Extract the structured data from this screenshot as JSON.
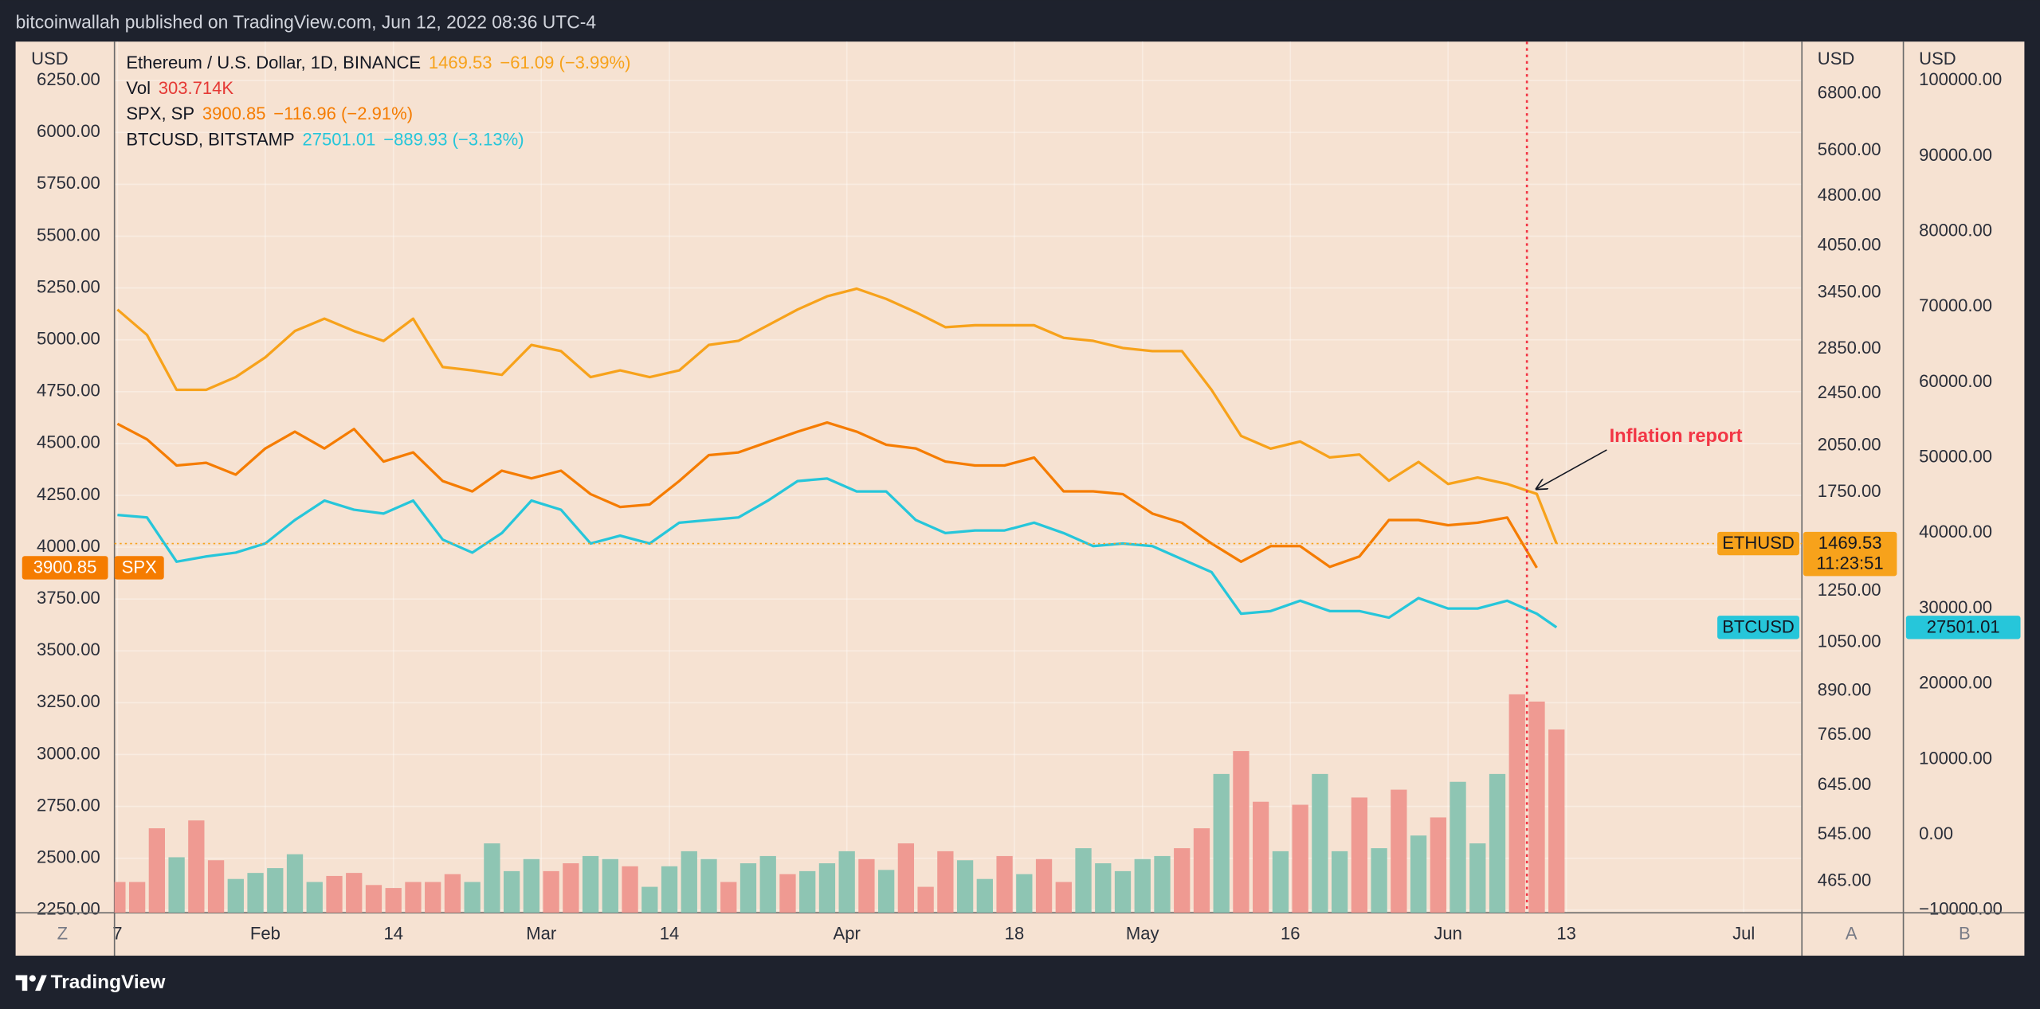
{
  "chart_data": {
    "type": "line",
    "header": "bitcoinwallah published on TradingView.com, Jun 12, 2022 08:36 UTC-4",
    "brand": "TradingView",
    "axis_titles": [
      "USD",
      "USD",
      "USD"
    ],
    "buttons": [
      "Z",
      "A",
      "B"
    ],
    "grid": true,
    "xlim": [
      16.7,
      187.9
    ],
    "xticks": [
      {
        "value": 17,
        "label": "7"
      },
      {
        "value": 32,
        "label": "Feb"
      },
      {
        "value": 45,
        "label": "14"
      },
      {
        "value": 60,
        "label": "Mar"
      },
      {
        "value": 73,
        "label": "14"
      },
      {
        "value": 91,
        "label": "Apr"
      },
      {
        "value": 108,
        "label": "18"
      },
      {
        "value": 121,
        "label": "May"
      },
      {
        "value": 136,
        "label": "16"
      },
      {
        "value": 152,
        "label": "Jun"
      },
      {
        "value": 164,
        "label": "13"
      },
      {
        "value": 182,
        "label": "Jul"
      }
    ],
    "ylim": [
      2237,
      6438
    ],
    "yticks": [
      {
        "value": 2250,
        "label": "2250.00"
      },
      {
        "value": 2500,
        "label": "2500.00"
      },
      {
        "value": 2750,
        "label": "2750.00"
      },
      {
        "value": 3000,
        "label": "3000.00"
      },
      {
        "value": 3250,
        "label": "3250.00"
      },
      {
        "value": 3500,
        "label": "3500.00"
      },
      {
        "value": 3750,
        "label": "3750.00"
      },
      {
        "value": 4000,
        "label": "4000.00"
      },
      {
        "value": 4250,
        "label": "4250.00"
      },
      {
        "value": 4500,
        "label": "4500.00"
      },
      {
        "value": 4750,
        "label": "4750.00"
      },
      {
        "value": 5000,
        "label": "5000.00"
      },
      {
        "value": 5250,
        "label": "5250.00"
      },
      {
        "value": 5500,
        "label": "5500.00"
      },
      {
        "value": 5750,
        "label": "5750.00"
      },
      {
        "value": 6000,
        "label": "6000.00"
      },
      {
        "value": 6250,
        "label": "6250.00"
      }
    ],
    "y2lim": [
      418,
      8117
    ],
    "y2log": true,
    "y2ticks": [
      {
        "value": 465,
        "label": "465.00"
      },
      {
        "value": 545,
        "label": "545.00"
      },
      {
        "value": 645,
        "label": "645.00"
      },
      {
        "value": 765,
        "label": "765.00"
      },
      {
        "value": 890,
        "label": "890.00"
      },
      {
        "value": 1050,
        "label": "1050.00"
      },
      {
        "value": 1250,
        "label": "1250.00"
      },
      {
        "value": 1750,
        "label": "1750.00"
      },
      {
        "value": 2050,
        "label": "2050.00"
      },
      {
        "value": 2450,
        "label": "2450.00"
      },
      {
        "value": 2850,
        "label": "2850.00"
      },
      {
        "value": 3450,
        "label": "3450.00"
      },
      {
        "value": 4050,
        "label": "4050.00"
      },
      {
        "value": 4800,
        "label": "4800.00"
      },
      {
        "value": 5600,
        "label": "5600.00"
      },
      {
        "value": 6800,
        "label": "6800.00"
      }
    ],
    "y3lim": [
      -10345,
      105172
    ],
    "y3ticks": [
      {
        "value": -10000,
        "label": "−10000.00"
      },
      {
        "value": 0,
        "label": "0.00"
      },
      {
        "value": 10000,
        "label": "10000.00"
      },
      {
        "value": 20000,
        "label": "20000.00"
      },
      {
        "value": 30000,
        "label": "30000.00"
      },
      {
        "value": 40000,
        "label": "40000.00"
      },
      {
        "value": 50000,
        "label": "50000.00"
      },
      {
        "value": 60000,
        "label": "60000.00"
      },
      {
        "value": 70000,
        "label": "70000.00"
      },
      {
        "value": 80000,
        "label": "80000.00"
      },
      {
        "value": 90000,
        "label": "90000.00"
      },
      {
        "value": 100000,
        "label": "100000.00"
      }
    ],
    "x": [
      17,
      20,
      23,
      26,
      29,
      32,
      35,
      38,
      41,
      44,
      47,
      50,
      53,
      56,
      59,
      62,
      65,
      68,
      71,
      74,
      77,
      80,
      83,
      86,
      89,
      92,
      95,
      98,
      101,
      104,
      107,
      110,
      113,
      116,
      119,
      122,
      125,
      128,
      131,
      134,
      137,
      140,
      143,
      146,
      149,
      152,
      155,
      158,
      161,
      163
    ],
    "series": [
      {
        "name": "Ethereum / U.S. Dollar, 1D, BINANCE",
        "tag": "ETHUSD",
        "color": "#f7a21b",
        "label_color": "#131722",
        "axis": "y2",
        "change": "−61.09 (−3.99%)",
        "countdown": "11:23:51",
        "price_line": true,
        "values": [
          3260,
          2990,
          2480,
          2480,
          2590,
          2770,
          3030,
          3160,
          3030,
          2930,
          3160,
          2680,
          2650,
          2610,
          2890,
          2830,
          2590,
          2650,
          2590,
          2650,
          2890,
          2930,
          3090,
          3260,
          3410,
          3500,
          3380,
          3230,
          3070,
          3090,
          3090,
          3090,
          2960,
          2930,
          2860,
          2830,
          2830,
          2480,
          2120,
          2030,
          2080,
          1970,
          1990,
          1820,
          1940,
          1800,
          1840,
          1800,
          1740,
          1469.53
        ]
      },
      {
        "name": "SPX, SP",
        "tag": "SPX",
        "color": "#f57c00",
        "label_color": "#ffffff",
        "axis": "y",
        "change": "−116.96 (−2.91%)",
        "values": [
          4595,
          4520,
          4394,
          4407,
          4350,
          4476,
          4557,
          4476,
          4570,
          4413,
          4457,
          4319,
          4269,
          4369,
          4332,
          4369,
          4256,
          4194,
          4206,
          4319,
          4444,
          4457,
          4507,
          4557,
          4601,
          4557,
          4494,
          4476,
          4413,
          4394,
          4394,
          4432,
          4269,
          4269,
          4256,
          4162,
          4118,
          4018,
          3930,
          4005,
          4005,
          3905,
          3955,
          4131,
          4131,
          4106,
          4118,
          4143,
          3900.85,
          null
        ]
      },
      {
        "name": "BTCUSD, BITSTAMP",
        "tag": "BTCUSD",
        "color": "#26c6da",
        "label_color": "#131722",
        "axis": "y3",
        "change": "−889.93 (−3.13%)",
        "values": [
          42410,
          42070,
          36210,
          36900,
          37410,
          38620,
          41730,
          44310,
          43100,
          42590,
          44310,
          39140,
          37410,
          40000,
          44310,
          43100,
          38620,
          39660,
          38620,
          41380,
          41730,
          42070,
          44310,
          46900,
          47240,
          45520,
          45520,
          41730,
          40000,
          40350,
          40350,
          41380,
          40000,
          38280,
          38620,
          38280,
          36550,
          34830,
          29310,
          29660,
          31030,
          29660,
          29660,
          28790,
          31380,
          30000,
          30000,
          31030,
          29310,
          27501.01
        ]
      }
    ],
    "volume": {
      "type": "bar",
      "name": "Vol",
      "legend_label": "303.714K",
      "legend_color": "#e53935",
      "x": [
        17,
        19,
        21,
        23,
        25,
        27,
        29,
        31,
        33,
        35,
        37,
        39,
        41,
        43,
        45,
        47,
        49,
        51,
        53,
        55,
        57,
        59,
        61,
        63,
        65,
        67,
        69,
        71,
        73,
        75,
        77,
        79,
        81,
        83,
        85,
        87,
        89,
        91,
        93,
        95,
        97,
        99,
        101,
        103,
        105,
        107,
        109,
        111,
        113,
        115,
        117,
        119,
        121,
        123,
        125,
        127,
        129,
        131,
        133,
        135,
        137,
        139,
        141,
        143,
        145,
        147,
        149,
        151,
        153,
        155,
        157,
        159,
        161,
        163
      ],
      "values": [
        51000,
        51000,
        140000,
        92000,
        153000,
        87000,
        56000,
        66000,
        74000,
        97000,
        51000,
        61000,
        66000,
        46000,
        41000,
        51000,
        51000,
        64000,
        51000,
        115000,
        69000,
        89000,
        69000,
        82000,
        94000,
        89000,
        77000,
        43000,
        77000,
        102000,
        89000,
        51000,
        82000,
        94000,
        64000,
        69000,
        82000,
        102000,
        89000,
        71000,
        115000,
        43000,
        102000,
        87000,
        56000,
        94000,
        64000,
        89000,
        51000,
        107000,
        82000,
        69000,
        89000,
        94000,
        107000,
        140000,
        230000,
        268000,
        184000,
        102000,
        179000,
        230000,
        102000,
        191000,
        107000,
        204000,
        128000,
        158000,
        217000,
        115000,
        230000,
        362000,
        350000,
        303714
      ],
      "colors": [
        "#ef9a92",
        "#ef9a92",
        "#ef9a92",
        "#8ec5b3",
        "#ef9a92",
        "#ef9a92",
        "#8ec5b3",
        "#8ec5b3",
        "#8ec5b3",
        "#8ec5b3",
        "#8ec5b3",
        "#ef9a92",
        "#ef9a92",
        "#ef9a92",
        "#ef9a92",
        "#ef9a92",
        "#ef9a92",
        "#ef9a92",
        "#8ec5b3",
        "#8ec5b3",
        "#8ec5b3",
        "#8ec5b3",
        "#ef9a92",
        "#ef9a92",
        "#8ec5b3",
        "#8ec5b3",
        "#ef9a92",
        "#8ec5b3",
        "#8ec5b3",
        "#8ec5b3",
        "#8ec5b3",
        "#ef9a92",
        "#8ec5b3",
        "#8ec5b3",
        "#ef9a92",
        "#8ec5b3",
        "#8ec5b3",
        "#8ec5b3",
        "#ef9a92",
        "#8ec5b3",
        "#ef9a92",
        "#ef9a92",
        "#ef9a92",
        "#8ec5b3",
        "#8ec5b3",
        "#ef9a92",
        "#8ec5b3",
        "#ef9a92",
        "#ef9a92",
        "#8ec5b3",
        "#8ec5b3",
        "#8ec5b3",
        "#8ec5b3",
        "#8ec5b3",
        "#ef9a92",
        "#ef9a92",
        "#8ec5b3",
        "#ef9a92",
        "#ef9a92",
        "#8ec5b3",
        "#ef9a92",
        "#8ec5b3",
        "#8ec5b3",
        "#ef9a92",
        "#8ec5b3",
        "#ef9a92",
        "#8ec5b3",
        "#ef9a92",
        "#8ec5b3",
        "#8ec5b3",
        "#8ec5b3",
        "#ef9a92",
        "#ef9a92",
        "#ef9a92"
      ]
    },
    "annotation": {
      "text": "Inflation report",
      "x": 160,
      "color": "#f23645"
    }
  }
}
